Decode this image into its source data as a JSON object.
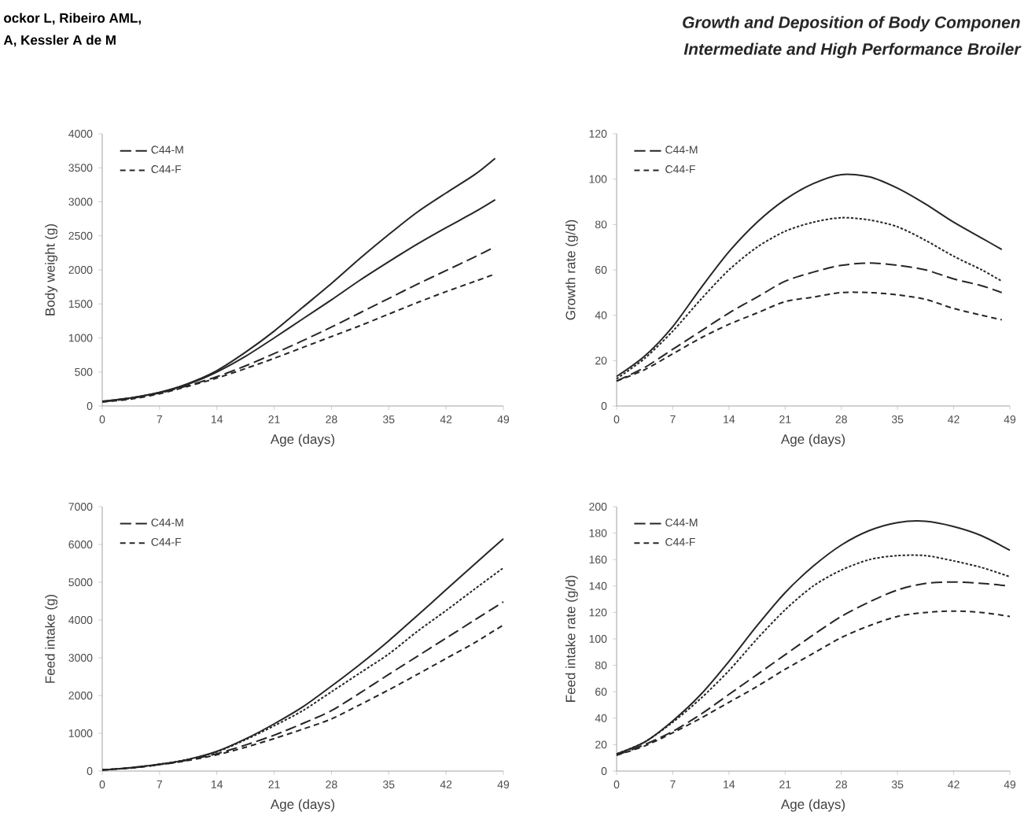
{
  "chart_data": [
    {
      "type": "line",
      "xlabel": "Age (days)",
      "ylabel": "Body weight (g)",
      "legend": "top left",
      "marker": "none",
      "annotations": [
        "ockor L, Ribeiro AML,",
        "A, Kessler A de M",
        "Growth and Deposition of Body Componen",
        "Intermediate and High Performance Broiler"
      ],
      "x": [
        0,
        3.5,
        7,
        10.5,
        14,
        17.5,
        21,
        24.5,
        28,
        31.5,
        35,
        38.5,
        42,
        45.5,
        48
      ],
      "xlim": [
        0,
        49
      ],
      "xticks": [
        0,
        7,
        14,
        21,
        28,
        35,
        42,
        49
      ],
      "ylim": [
        0,
        4000
      ],
      "yticks": [
        0,
        500,
        1000,
        1500,
        2000,
        2500,
        3000,
        3500,
        4000
      ],
      "series": [
        {
          "color": "#262626",
          "line_style": "solid",
          "values": [
            70,
            120,
            200,
            330,
            520,
            790,
            1100,
            1450,
            1800,
            2170,
            2520,
            2850,
            3130,
            3400,
            3640
          ]
        },
        {
          "name": "C44-M",
          "color": "#262626",
          "line_style": "dashed",
          "values": [
            60,
            110,
            190,
            300,
            430,
            590,
            770,
            960,
            1160,
            1370,
            1580,
            1790,
            1990,
            2190,
            2340
          ]
        },
        {
          "color": "#262626",
          "line_style": "solid",
          "values": [
            70,
            120,
            200,
            320,
            500,
            730,
            1000,
            1280,
            1560,
            1850,
            2120,
            2380,
            2620,
            2850,
            3030
          ]
        },
        {
          "name": "C44-F",
          "color": "#262626",
          "line_style": "dashed",
          "values": [
            60,
            100,
            180,
            290,
            410,
            550,
            700,
            860,
            1020,
            1180,
            1350,
            1520,
            1680,
            1830,
            1940
          ]
        }
      ]
    },
    {
      "type": "line",
      "xlabel": "Age (days)",
      "ylabel": "Growth  rate (g/d)",
      "legend": "top left",
      "marker": "none",
      "x": [
        0,
        3.5,
        7,
        10.5,
        14,
        17.5,
        21,
        24.5,
        28,
        31.5,
        35,
        38.5,
        42,
        45.5,
        48
      ],
      "xlim": [
        0,
        49
      ],
      "xticks": [
        0,
        7,
        14,
        21,
        28,
        35,
        42,
        49
      ],
      "ylim": [
        0,
        120
      ],
      "yticks": [
        0,
        20,
        40,
        60,
        80,
        100,
        120
      ],
      "series": [
        {
          "color": "#262626",
          "line_style": "solid",
          "values": [
            13,
            22,
            35,
            52,
            68,
            81,
            91,
            98,
            102,
            101,
            96,
            89,
            81,
            74,
            69
          ]
        },
        {
          "name": "C44-M",
          "color": "#262626",
          "line_style": "dashed",
          "values": [
            11,
            17,
            25,
            33,
            41,
            48,
            55,
            59,
            62,
            63,
            62,
            60,
            56,
            53,
            50
          ]
        },
        {
          "color": "#262626",
          "line_style": "dotted",
          "values": [
            12,
            21,
            33,
            47,
            60,
            70,
            77,
            81,
            83,
            82,
            79,
            73,
            66,
            60,
            55
          ]
        },
        {
          "name": "C44-F",
          "color": "#262626",
          "line_style": "dashed",
          "values": [
            11,
            16,
            23,
            30,
            36,
            41,
            46,
            48,
            50,
            50,
            49,
            47,
            43,
            40,
            38
          ]
        }
      ]
    },
    {
      "type": "line",
      "xlabel": "Age (days)",
      "ylabel": "Feed intake (g)",
      "legend": "top left",
      "marker": "none",
      "x": [
        0,
        3.5,
        7,
        10.5,
        14,
        17.5,
        21,
        24.5,
        28,
        31.5,
        35,
        38.5,
        42,
        45.5,
        49
      ],
      "xlim": [
        0,
        49
      ],
      "xticks": [
        0,
        7,
        14,
        21,
        28,
        35,
        42,
        49
      ],
      "ylim": [
        0,
        7000
      ],
      "yticks": [
        0,
        1000,
        2000,
        3000,
        4000,
        5000,
        6000,
        7000
      ],
      "series": [
        {
          "color": "#262626",
          "line_style": "solid",
          "values": [
            30,
            90,
            180,
            310,
            520,
            850,
            1250,
            1700,
            2250,
            2830,
            3450,
            4120,
            4800,
            5480,
            6150
          ]
        },
        {
          "name": "C44-M",
          "color": "#262626",
          "line_style": "dashed",
          "values": [
            30,
            80,
            170,
            290,
            460,
            690,
            950,
            1260,
            1600,
            2070,
            2560,
            3040,
            3520,
            4000,
            4480
          ]
        },
        {
          "color": "#262626",
          "line_style": "dotted",
          "values": [
            30,
            90,
            180,
            310,
            510,
            830,
            1200,
            1600,
            2100,
            2600,
            3100,
            3700,
            4250,
            4820,
            5380
          ]
        },
        {
          "name": "C44-F",
          "color": "#262626",
          "line_style": "dashed",
          "values": [
            30,
            80,
            170,
            280,
            430,
            630,
            860,
            1110,
            1380,
            1760,
            2150,
            2560,
            2980,
            3400,
            3870
          ]
        }
      ]
    },
    {
      "type": "line",
      "xlabel": "Age (days)",
      "ylabel": "Feed intake rate (g/d)",
      "legend": "top left",
      "marker": "none",
      "x": [
        0,
        3.5,
        7,
        10.5,
        14,
        17.5,
        21,
        24.5,
        28,
        31.5,
        35,
        38.5,
        42,
        45.5,
        49
      ],
      "xlim": [
        0,
        49
      ],
      "xticks": [
        0,
        7,
        14,
        21,
        28,
        35,
        42,
        49
      ],
      "ylim": [
        0,
        200
      ],
      "yticks": [
        0,
        20,
        40,
        60,
        80,
        100,
        120,
        140,
        160,
        180,
        200
      ],
      "series": [
        {
          "color": "#262626",
          "line_style": "solid",
          "values": [
            13,
            22,
            38,
            58,
            83,
            110,
            135,
            155,
            171,
            182,
            188,
            189,
            185,
            178,
            167
          ]
        },
        {
          "name": "C44-M",
          "color": "#262626",
          "line_style": "dashed",
          "values": [
            12,
            20,
            30,
            43,
            58,
            73,
            88,
            103,
            117,
            128,
            137,
            142,
            143,
            142,
            140
          ]
        },
        {
          "color": "#262626",
          "line_style": "dotted",
          "values": [
            13,
            22,
            37,
            55,
            76,
            100,
            122,
            140,
            152,
            160,
            163,
            163,
            159,
            154,
            147
          ]
        },
        {
          "name": "C44-F",
          "color": "#262626",
          "line_style": "dashed",
          "values": [
            12,
            19,
            29,
            40,
            52,
            64,
            77,
            89,
            101,
            110,
            117,
            120,
            121,
            120,
            117
          ]
        }
      ]
    }
  ]
}
